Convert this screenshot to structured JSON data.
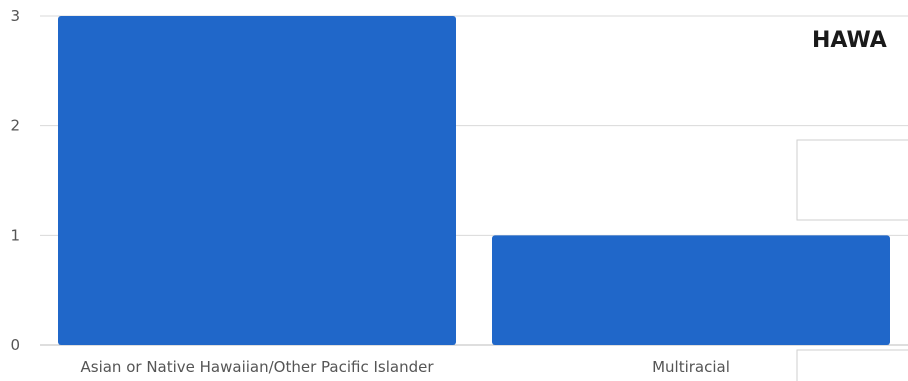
{
  "title": "HAWA",
  "colors": {
    "bar": "#2067c9",
    "grid": "#d9d9d9",
    "text": "#555555"
  },
  "chart_data": {
    "type": "bar",
    "title": "HAWA",
    "categories": [
      "Asian or Native Hawaiian/Other Pacific Islander",
      "Multiracial"
    ],
    "values": [
      3,
      1
    ],
    "ylim": [
      0,
      3
    ],
    "yticks": [
      0,
      1,
      2,
      3
    ],
    "grid": true,
    "xlabel": "",
    "ylabel": ""
  }
}
